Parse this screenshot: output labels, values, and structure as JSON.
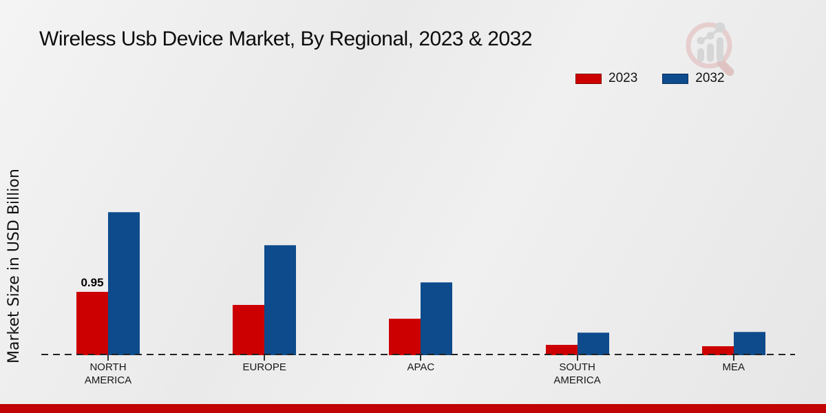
{
  "title": "Wireless Usb Device Market, By Regional, 2023 & 2032",
  "ylabel": "Market Size in USD Billion",
  "logo_name": "magnifier-growth-chart-logo",
  "colors": {
    "series_2023": "#cc0000",
    "series_2032": "#0d4b8c",
    "footer_strip": "#c10303",
    "baseline": "#222222",
    "background": "#ececec"
  },
  "chart_data": {
    "type": "bar",
    "title": "Wireless Usb Device Market, By Regional, 2023 & 2032",
    "categories": [
      "NORTH AMERICA",
      "EUROPE",
      "APAC",
      "SOUTH AMERICA",
      "MEA"
    ],
    "series": [
      {
        "name": "2023",
        "color": "#cc0000",
        "values": [
          0.95,
          0.75,
          0.55,
          0.15,
          0.13
        ]
      },
      {
        "name": "2032",
        "color": "#0d4b8c",
        "values": [
          2.15,
          1.65,
          1.1,
          0.34,
          0.35
        ]
      }
    ],
    "xlabel": "",
    "ylabel": "Market Size in USD Billion",
    "ylim": [
      0,
      2.3
    ],
    "grid": false,
    "y_axis_ticks_visible": false,
    "legend_position": "top-right",
    "baseline_style": "dashed",
    "annotations": [
      {
        "category_index": 0,
        "series_index": 0,
        "text": "0.95"
      }
    ]
  }
}
